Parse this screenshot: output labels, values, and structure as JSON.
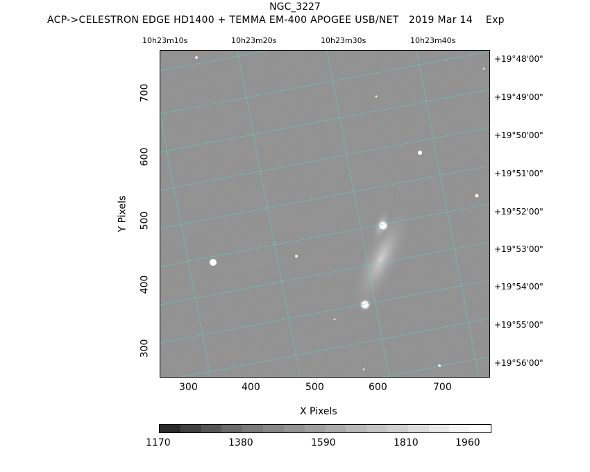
{
  "header": {
    "title": "NGC_3227",
    "subtitle": "ACP->CELESTRON EDGE HD1400 + TEMMA EM-400 APOGEE USB/NET   2019 Mar 14    Exp"
  },
  "axes": {
    "xlabel": "X Pixels",
    "ylabel": "Y Pixels",
    "x_ticks": [
      "300",
      "400",
      "500",
      "600",
      "700"
    ],
    "y_ticks": [
      "700",
      "600",
      "500",
      "400",
      "300"
    ],
    "ra_labels": [
      "10h23m10s",
      "10h23m20s",
      "10h23m30s",
      "10h23m40s"
    ],
    "dec_labels": [
      "+19°48'00\"",
      "+19°49'00\"",
      "+19°50'00\"",
      "+19°51'00\"",
      "+19°52'00\"",
      "+19°53'00\"",
      "+19°54'00\"",
      "+19°55'00\"",
      "+19°56'00\""
    ]
  },
  "colorbar": {
    "labels": [
      "1170",
      "1380",
      "1590",
      "1810",
      "1960"
    ],
    "colors": [
      "#2a2a2a",
      "#404040",
      "#555555",
      "#6a6a6a",
      "#7a7a7a",
      "#878787",
      "#939393",
      "#9f9f9f",
      "#ababab",
      "#b8b8b8",
      "#c4c4c4",
      "#d0d0d0",
      "#dddddd",
      "#e9e9e9",
      "#f5f5f5",
      "#ffffff"
    ]
  },
  "image": {
    "grid_color": "#5fd3d3",
    "background_color": "#8a8a8a"
  }
}
